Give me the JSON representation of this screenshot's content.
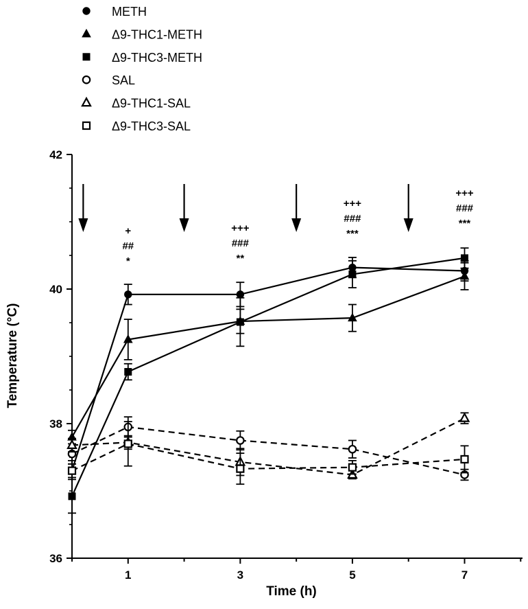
{
  "chart_data": {
    "type": "line",
    "xlabel": "Time (h)",
    "ylabel": "Temperature (°C)",
    "xlim": [
      0,
      7.0
    ],
    "ylim": [
      36,
      42
    ],
    "x_tick_labels": [
      "1",
      "3",
      "5",
      "7"
    ],
    "y_tick_labels": [
      "36",
      "38",
      "40",
      "42"
    ],
    "legend_position": "top-left",
    "grid": false,
    "x": [
      0,
      1,
      3,
      5,
      7
    ],
    "series": [
      {
        "name": "METH",
        "marker": "circle",
        "filled": true,
        "dash": false,
        "values": [
          37.3,
          39.92,
          39.92,
          40.32,
          40.27
        ],
        "errors": [
          0.1,
          0.15,
          0.18,
          0.15,
          0.15
        ]
      },
      {
        "name": "Δ9-THC1-METH",
        "marker": "triangle",
        "filled": true,
        "dash": false,
        "values": [
          37.8,
          39.25,
          39.52,
          39.57,
          40.19
        ],
        "errors": [
          0.1,
          0.3,
          0.18,
          0.2,
          0.2
        ]
      },
      {
        "name": "Δ9-THC3-METH",
        "marker": "square",
        "filled": true,
        "dash": false,
        "values": [
          36.92,
          38.77,
          39.51,
          40.22,
          40.46
        ],
        "errors": [
          0.25,
          0.12,
          0.36,
          0.2,
          0.15
        ]
      },
      {
        "name": "SAL",
        "marker": "circle",
        "filled": false,
        "dash": true,
        "values": [
          37.55,
          37.95,
          37.75,
          37.62,
          37.24
        ],
        "errors": [
          0.1,
          0.15,
          0.14,
          0.13,
          0.08
        ]
      },
      {
        "name": "Δ9-THC1-SAL",
        "marker": "triangle",
        "filled": false,
        "dash": true,
        "values": [
          37.68,
          37.72,
          37.43,
          37.24,
          38.08
        ],
        "errors": [
          0.1,
          0.1,
          0.2,
          0.06,
          0.08
        ]
      },
      {
        "name": "Δ9-THC3-SAL",
        "marker": "square",
        "filled": false,
        "dash": true,
        "values": [
          37.3,
          37.7,
          37.33,
          37.35,
          37.47
        ],
        "errors": [
          0.1,
          0.33,
          0.23,
          0.1,
          0.2
        ]
      }
    ],
    "injection_arrows_x": [
      0.2,
      2.0,
      4.0,
      6.0
    ],
    "annotations": [
      {
        "x": 1,
        "lines": [
          "+",
          "##",
          "*"
        ]
      },
      {
        "x": 3,
        "lines": [
          "+++",
          "###",
          "**"
        ]
      },
      {
        "x": 5,
        "lines": [
          "+++",
          "###",
          "***"
        ]
      },
      {
        "x": 7,
        "lines": [
          "+++",
          "###",
          "***"
        ]
      }
    ]
  }
}
